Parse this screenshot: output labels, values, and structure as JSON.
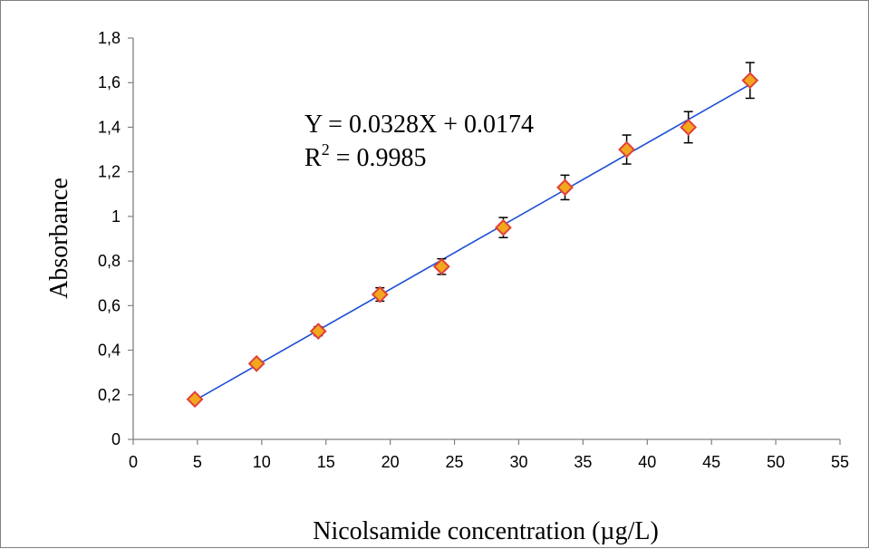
{
  "chart_data": {
    "type": "scatter",
    "xlabel": "Nicolsamide concentration (µg/L)",
    "ylabel": "Absorbance",
    "xlim": [
      0,
      55
    ],
    "ylim": [
      0,
      1.8
    ],
    "x_ticks": [
      "0",
      "5",
      "10",
      "15",
      "20",
      "25",
      "30",
      "35",
      "40",
      "45",
      "50",
      "55"
    ],
    "y_ticks": [
      "0",
      "0,2",
      "0,4",
      "0,6",
      "0,8",
      "1",
      "1,2",
      "1,4",
      "1,6",
      "1,8"
    ],
    "grid": false,
    "series": [
      {
        "x": [
          4.8,
          9.6,
          14.4,
          19.2,
          24.0,
          28.8,
          33.6,
          38.4,
          43.2,
          48.0
        ],
        "y": [
          0.18,
          0.34,
          0.485,
          0.65,
          0.775,
          0.95,
          1.13,
          1.3,
          1.4,
          1.61
        ],
        "error": [
          0.01,
          0.015,
          0.02,
          0.03,
          0.035,
          0.045,
          0.055,
          0.065,
          0.07,
          0.08
        ]
      }
    ],
    "trendline": {
      "slope": 0.0328,
      "intercept": 0.0174,
      "x_range": [
        4.8,
        48.0
      ]
    },
    "equation_line1": "Y = 0.0328X + 0.0174",
    "equation_r_base": "R",
    "equation_r_sup": "2",
    "equation_r_rest": " = 0.9985"
  },
  "colors": {
    "marker_fill": "#f2a81d",
    "marker_stroke": "#e0413a",
    "trendline": "#1f4fd6",
    "axis": "#808080",
    "error_bar": "#000000"
  }
}
